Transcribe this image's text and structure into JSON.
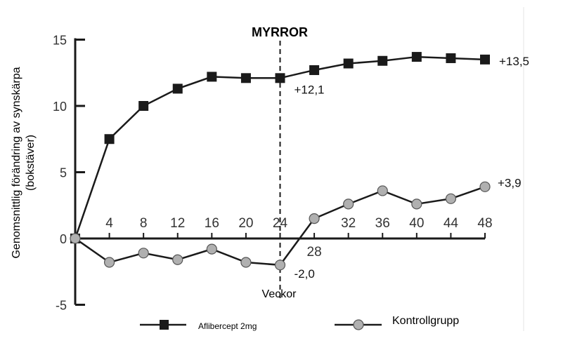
{
  "chart_data": {
    "type": "line",
    "title": "MYRROR",
    "xlabel": "Veckor",
    "ylabel": "Genomsnittlig förändring av synskärpa",
    "ylabel_line2": "(bokstäver)",
    "x": [
      0,
      4,
      8,
      12,
      16,
      20,
      24,
      28,
      32,
      36,
      40,
      44,
      48
    ],
    "x_tick_labels": [
      "4",
      "8",
      "12",
      "16",
      "20",
      "24",
      "28",
      "32",
      "36",
      "40",
      "44",
      "48"
    ],
    "y_tick_labels": [
      "15",
      "10",
      "5",
      "0",
      "-5"
    ],
    "y_ticks": [
      15,
      10,
      5,
      0,
      -5
    ],
    "ylim": [
      -5,
      15
    ],
    "xlim": [
      0,
      48
    ],
    "series": [
      {
        "name": "Aflibercept 2mg",
        "marker": "square",
        "color": "#1a1a1a",
        "values": [
          0,
          7.5,
          10.0,
          11.3,
          12.2,
          12.1,
          12.1,
          12.7,
          13.2,
          13.4,
          13.7,
          13.6,
          13.5
        ]
      },
      {
        "name": "Kontrollgrupp",
        "marker": "circle",
        "color": "#b0b0b0",
        "values": [
          0,
          -1.8,
          -1.1,
          -1.6,
          -0.8,
          -1.8,
          -2.0,
          1.5,
          2.6,
          3.6,
          2.6,
          3.0,
          3.9
        ]
      }
    ],
    "annotations": [
      {
        "text": "+12,1",
        "x": 24,
        "y": 12.1
      },
      {
        "text": "-2,0",
        "x": 24,
        "y": -2.0
      },
      {
        "text": "+13,5",
        "x": 48,
        "y": 13.5
      },
      {
        "text": "+3,9",
        "x": 48,
        "y": 3.9
      }
    ],
    "vline_x": 24,
    "legend_position": "bottom"
  }
}
